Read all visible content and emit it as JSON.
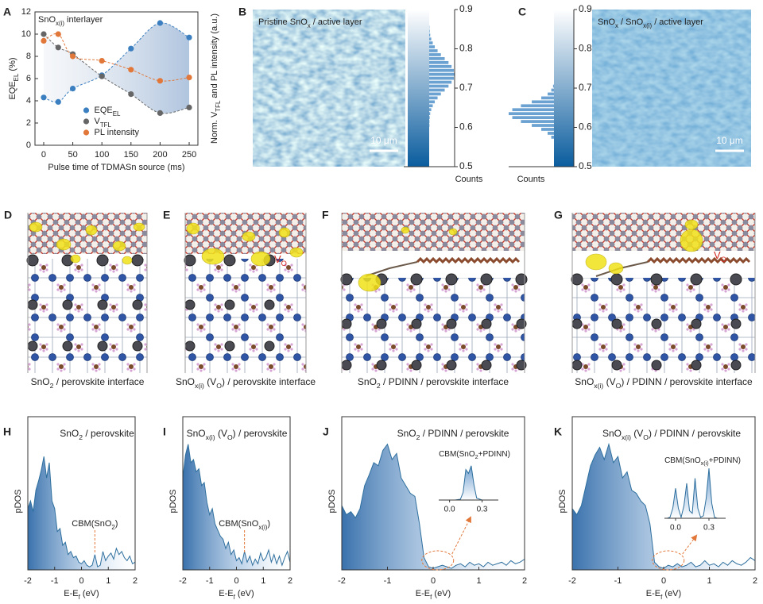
{
  "chart_data": [
    {
      "type": "scatter",
      "label": "A",
      "title": [
        "SnO",
        {
          "sub": "x(i)"
        },
        " interlayer"
      ],
      "xlabel": "Pulse time of TDMASn source (ms)",
      "ylabel": [
        "EQE",
        {
          "sub": "EL"
        },
        " (%)"
      ],
      "y2label": [
        "Norm. V",
        {
          "sub": "TFL"
        },
        " and PL intensity (a.u.)"
      ],
      "x": [
        0,
        25,
        50,
        100,
        150,
        200,
        250
      ],
      "series": [
        {
          "name": [
            "EQE",
            {
              "sub": "EL"
            }
          ],
          "color": "#3b7fc0",
          "values": [
            4.3,
            3.9,
            5.1,
            6.3,
            8.7,
            11,
            9.7
          ]
        },
        {
          "name": [
            "V",
            {
              "sub": "TFL"
            }
          ],
          "color": "#666666",
          "axis": "y2",
          "values": [
            10,
            8.8,
            8.2,
            6.2,
            4.6,
            2.9,
            3.4
          ]
        },
        {
          "name": [
            "PL intensity"
          ],
          "color": "#e2773a",
          "axis": "y2",
          "values": [
            9.4,
            10,
            8,
            7.6,
            6.8,
            5.8,
            6.1
          ]
        }
      ],
      "xlim": [
        -15,
        265
      ],
      "xticks": [
        0,
        50,
        100,
        150,
        200,
        250
      ],
      "ylim": [
        0,
        12
      ],
      "yticks": [
        0,
        2,
        4,
        6,
        8,
        10,
        12
      ],
      "y2lim": [
        0,
        12
      ],
      "legend": "lower center"
    },
    {
      "type": "histogram",
      "label": "B",
      "image_label": [
        "Pristine SnO",
        {
          "sub": "x"
        },
        " / active layer"
      ],
      "scale_bar": "10 μm",
      "xlabel": "Counts",
      "bins": [
        0.6,
        0.61,
        0.62,
        0.63,
        0.64,
        0.65,
        0.66,
        0.67,
        0.68,
        0.69,
        0.7,
        0.71,
        0.72,
        0.73,
        0.74,
        0.75,
        0.76,
        0.77,
        0.78,
        0.79,
        0.8,
        0.81,
        0.82,
        0.83,
        0.84,
        0.85,
        0.86
      ],
      "values": [
        1,
        1,
        2,
        4,
        8,
        14,
        22,
        33,
        46,
        61,
        76,
        88,
        97,
        100,
        97,
        88,
        76,
        61,
        46,
        33,
        22,
        14,
        8,
        4,
        2,
        1
      ],
      "xlim": [
        0,
        100
      ],
      "ylim": [
        0.5,
        0.9
      ],
      "yticks": [
        0.5,
        0.6,
        0.7,
        0.8,
        0.9
      ],
      "color": "#3a83c2",
      "colormap": [
        "#0a5c9e",
        "#ffffff"
      ]
    },
    {
      "type": "histogram",
      "label": "C",
      "image_label": [
        "SnO",
        {
          "sub": "x"
        },
        " / SnO",
        {
          "sub": "x(i)"
        },
        " / active layer"
      ],
      "scale_bar": "10 μm",
      "xlabel": "Counts",
      "bins": [
        0.57,
        0.58,
        0.59,
        0.6,
        0.61,
        0.62,
        0.63,
        0.64,
        0.65,
        0.66,
        0.67,
        0.68,
        0.69,
        0.7,
        0.71
      ],
      "values": [
        6,
        14,
        28,
        49,
        73,
        92,
        100,
        92,
        73,
        49,
        28,
        14,
        6,
        2
      ],
      "xlim": [
        0,
        100
      ],
      "ylim": [
        0.5,
        0.9
      ],
      "yticks": [
        0.5,
        0.6,
        0.7,
        0.8,
        0.9
      ],
      "color": "#3a83c2",
      "colormap": [
        "#0a5c9e",
        "#ffffff"
      ]
    },
    {
      "type": "area",
      "label": "H",
      "title": [
        "SnO",
        {
          "sub": "2"
        },
        " / perovskite"
      ],
      "ylabel": "pDOS",
      "xlabel": [
        "E-E",
        {
          "sub": "f"
        },
        " (eV)"
      ],
      "annotation": [
        "CBM(SnO",
        {
          "sub": "2"
        },
        ")"
      ],
      "color": "#2e6f9e",
      "x": [
        -2,
        -1.9,
        -1.8,
        -1.7,
        -1.6,
        -1.5,
        -1.4,
        -1.3,
        -1.2,
        -1.1,
        -1,
        -0.9,
        -0.8,
        -0.7,
        -0.6,
        -0.5,
        -0.4,
        -0.3,
        -0.2,
        -0.1,
        0,
        0.1,
        0.2,
        0.3,
        0.4,
        0.5,
        0.6,
        0.7,
        0.8,
        0.9,
        1,
        1.1,
        1.2,
        1.3,
        1.4,
        1.5,
        1.6,
        1.7,
        1.8,
        1.9,
        2
      ],
      "values": [
        40,
        45,
        38,
        52,
        58,
        65,
        74,
        60,
        70,
        45,
        40,
        25,
        27,
        16,
        18,
        10,
        12,
        8,
        9,
        5,
        4,
        6,
        3,
        2,
        3,
        10,
        2,
        3,
        12,
        6,
        9,
        11,
        7,
        14,
        10,
        12,
        8,
        6,
        9,
        4,
        5
      ],
      "xlim": [
        -2,
        2
      ],
      "xticks": [
        -2,
        -1,
        0,
        1,
        2
      ],
      "ylim": [
        0,
        100
      ]
    },
    {
      "type": "area",
      "label": "I",
      "title": [
        "SnO",
        {
          "sub": "x(i)"
        },
        " (V",
        {
          "sub": "O"
        },
        ") / perovskite"
      ],
      "ylabel": "pDOS",
      "xlabel": [
        "E-E",
        {
          "sub": "f"
        },
        " (eV)"
      ],
      "annotation": [
        "CBM(SnO",
        {
          "sub": "x(i)"
        },
        ")"
      ],
      "color": "#2e6f9e",
      "x": [
        -2,
        -1.9,
        -1.8,
        -1.7,
        -1.6,
        -1.5,
        -1.4,
        -1.3,
        -1.2,
        -1.1,
        -1,
        -0.9,
        -0.8,
        -0.7,
        -0.6,
        -0.5,
        -0.4,
        -0.3,
        -0.2,
        -0.1,
        0,
        0.1,
        0.2,
        0.3,
        0.4,
        0.5,
        0.6,
        0.7,
        0.8,
        0.9,
        1,
        1.1,
        1.2,
        1.3,
        1.4,
        1.5,
        1.6,
        1.7,
        1.8,
        1.9,
        2
      ],
      "values": [
        60,
        75,
        82,
        70,
        72,
        64,
        66,
        55,
        57,
        44,
        36,
        40,
        30,
        26,
        22,
        20,
        14,
        18,
        10,
        13,
        6,
        8,
        4,
        12,
        5,
        9,
        3,
        7,
        4,
        11,
        6,
        8,
        13,
        5,
        10,
        4,
        9,
        3,
        8,
        12,
        5
      ],
      "xlim": [
        -2,
        2
      ],
      "xticks": [
        -2,
        -1,
        0,
        1,
        2
      ],
      "ylim": [
        0,
        100
      ]
    },
    {
      "type": "area",
      "label": "J",
      "title": [
        "SnO",
        {
          "sub": "2"
        },
        " / PDINN / perovskite"
      ],
      "ylabel": "pDOS",
      "xlabel": [
        "E-E",
        {
          "sub": "f"
        },
        " (eV)"
      ],
      "color": "#2e6f9e",
      "x": [
        -2,
        -1.9,
        -1.8,
        -1.7,
        -1.6,
        -1.5,
        -1.4,
        -1.3,
        -1.2,
        -1.1,
        -1,
        -0.9,
        -0.8,
        -0.7,
        -0.6,
        -0.5,
        -0.4,
        -0.3,
        -0.2,
        -0.1,
        0,
        0.1,
        0.2,
        0.3,
        0.4,
        0.5,
        0.6,
        0.7,
        0.8,
        0.9,
        1,
        1.1,
        1.2,
        1.3,
        1.4,
        1.5,
        1.6,
        1.7,
        1.8,
        1.9,
        2
      ],
      "values": [
        42,
        36,
        38,
        34,
        40,
        55,
        62,
        70,
        68,
        78,
        82,
        72,
        76,
        60,
        55,
        50,
        48,
        30,
        8,
        2,
        1,
        2,
        3,
        2,
        1,
        3,
        4,
        2,
        5,
        3,
        4,
        2,
        5,
        3,
        4,
        5,
        3,
        6,
        4,
        5,
        7
      ],
      "xlim": [
        -2,
        2
      ],
      "xticks": [
        -2,
        -1,
        0,
        1,
        2
      ],
      "ylim": [
        0,
        100
      ],
      "inset": {
        "title": [
          "CBM(SnO",
          {
            "sub": "2"
          },
          "+PDINN)"
        ],
        "x": [
          -0.1,
          -0.05,
          0,
          0.05,
          0.1,
          0.125,
          0.15,
          0.175,
          0.2,
          0.225,
          0.25,
          0.3,
          0.35,
          0.4,
          0.45
        ],
        "values": [
          0,
          0,
          0,
          0,
          2,
          20,
          80,
          70,
          90,
          40,
          5,
          0,
          0,
          0,
          0
        ],
        "xlim": [
          -0.1,
          0.45
        ],
        "xticks": [
          {
            "value": 0,
            "label": "0.0"
          },
          0.3
        ],
        "ylim": [
          0,
          100
        ]
      }
    },
    {
      "type": "area",
      "label": "K",
      "title": [
        "SnO",
        {
          "sub": "x(i)"
        },
        " (V",
        {
          "sub": "O"
        },
        ") / PDINN / perovskite"
      ],
      "ylabel": "pDOS",
      "xlabel": [
        "E-E",
        {
          "sub": "f"
        },
        " (eV)"
      ],
      "color": "#2e6f9e",
      "x": [
        -2,
        -1.9,
        -1.8,
        -1.7,
        -1.6,
        -1.5,
        -1.4,
        -1.3,
        -1.2,
        -1.1,
        -1,
        -0.9,
        -0.8,
        -0.7,
        -0.6,
        -0.5,
        -0.4,
        -0.3,
        -0.2,
        -0.1,
        0,
        0.1,
        0.2,
        0.3,
        0.4,
        0.5,
        0.6,
        0.7,
        0.8,
        0.9,
        1,
        1.1,
        1.2,
        1.3,
        1.4,
        1.5,
        1.6,
        1.7,
        1.8,
        1.9,
        2
      ],
      "values": [
        40,
        36,
        42,
        55,
        68,
        75,
        80,
        72,
        82,
        70,
        74,
        60,
        64,
        52,
        50,
        45,
        42,
        30,
        5,
        2,
        1,
        3,
        2,
        4,
        2,
        3,
        5,
        2,
        3,
        6,
        3,
        4,
        2,
        5,
        3,
        6,
        4,
        3,
        5,
        8,
        6
      ],
      "xlim": [
        -2,
        2
      ],
      "xticks": [
        -2,
        -1,
        0,
        1,
        2
      ],
      "ylim": [
        0,
        100
      ],
      "inset": {
        "title": [
          "CBM(SnO",
          {
            "sub": "x(i)"
          },
          "+PDINN)"
        ],
        "x": [
          -0.1,
          -0.075,
          -0.05,
          -0.025,
          0,
          0.025,
          0.05,
          0.075,
          0.1,
          0.125,
          0.15,
          0.175,
          0.2,
          0.225,
          0.25,
          0.275,
          0.3,
          0.325,
          0.35,
          0.375,
          0.4,
          0.425,
          0.45
        ],
        "values": [
          0,
          0,
          2,
          20,
          60,
          20,
          2,
          25,
          70,
          15,
          10,
          80,
          20,
          2,
          5,
          40,
          100,
          30,
          2,
          0,
          0,
          0,
          0
        ],
        "xlim": [
          -0.1,
          0.45
        ],
        "xticks": [
          {
            "value": 0,
            "label": "0.0"
          },
          0.3
        ],
        "ylim": [
          0,
          100
        ]
      }
    }
  ],
  "structures": [
    {
      "label": "D",
      "caption": [
        "SnO",
        {
          "sub": "2"
        },
        " / perovskite interface"
      ]
    },
    {
      "label": "E",
      "caption": [
        "SnO",
        {
          "sub": "x(i)"
        },
        " (V",
        {
          "sub": "O"
        },
        ") / perovskite interface"
      ],
      "annotation": [
        "V",
        {
          "sub": "O"
        }
      ]
    },
    {
      "label": "F",
      "caption": [
        "SnO",
        {
          "sub": "2"
        },
        " / PDINN / perovskite interface"
      ]
    },
    {
      "label": "G",
      "caption": [
        "SnO",
        {
          "sub": "x(i)"
        },
        " (V",
        {
          "sub": "O"
        },
        ") / PDINN / perovskite interface"
      ],
      "annotation": [
        "V",
        {
          "sub": "O"
        }
      ]
    }
  ]
}
